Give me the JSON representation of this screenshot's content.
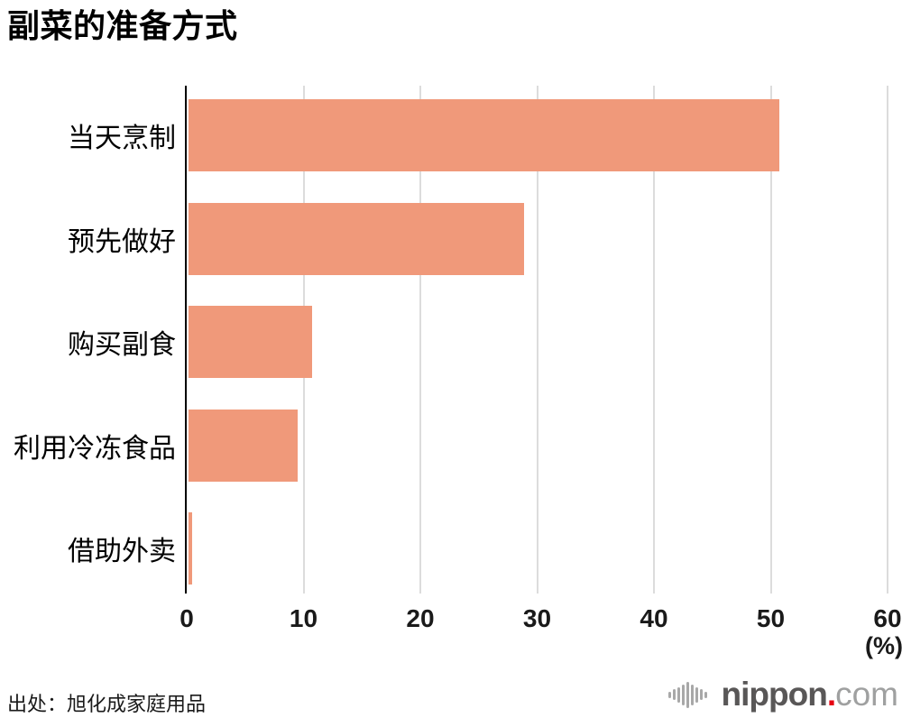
{
  "title": "副菜的准备方式",
  "chart_data": {
    "type": "bar",
    "orientation": "horizontal",
    "title": "副菜的准备方式",
    "categories": [
      "当天烹制",
      "预先做好",
      "购买副食",
      "利用冷冻食品",
      "借助外卖"
    ],
    "values": [
      50.7,
      28.9,
      10.7,
      9.5,
      0.5
    ],
    "xlabel": "(%)",
    "xlim": [
      0,
      60
    ],
    "xticks": [
      0,
      10,
      20,
      30,
      40,
      50,
      60
    ],
    "grid": true,
    "legend": "none",
    "bar_color": "#f0997a",
    "gridline_color": "#dcdcdc",
    "axis_color": "#000000"
  },
  "footer": {
    "source": "出处：旭化成家庭用品",
    "logo": {
      "name": "nippon.com",
      "text_main": "nippon",
      "text_dot": ".",
      "text_suffix": "com",
      "main_color": "#595757",
      "dot_color": "#e60012",
      "suffix_color": "#9fa0a0"
    }
  }
}
